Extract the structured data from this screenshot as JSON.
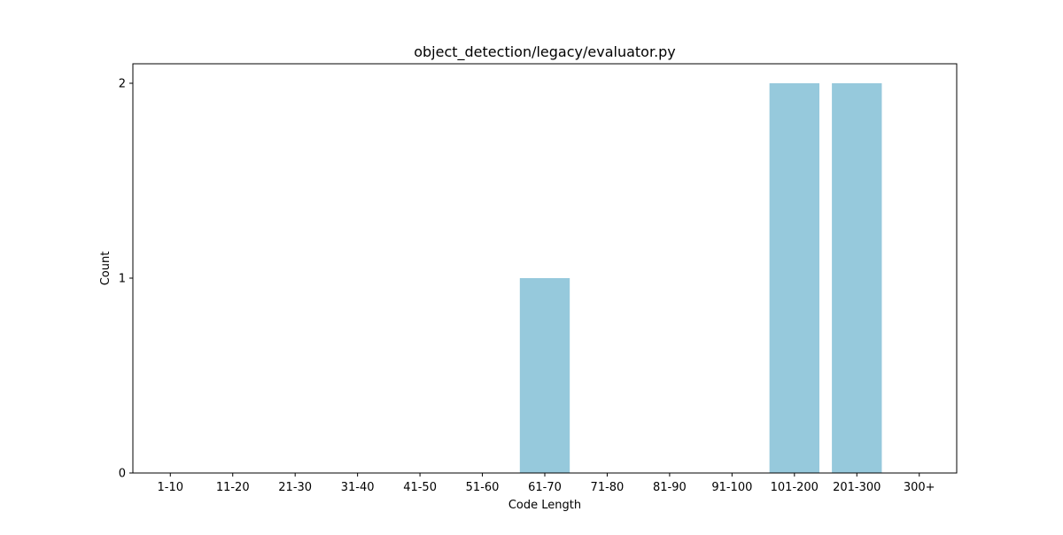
{
  "chart_data": {
    "type": "bar",
    "title": "object_detection/legacy/evaluator.py",
    "xlabel": "Code Length",
    "ylabel": "Count",
    "categories": [
      "1-10",
      "11-20",
      "21-30",
      "31-40",
      "41-50",
      "51-60",
      "61-70",
      "71-80",
      "81-90",
      "91-100",
      "101-200",
      "201-300",
      "300+"
    ],
    "values": [
      0,
      0,
      0,
      0,
      0,
      0,
      1,
      0,
      0,
      0,
      2,
      2,
      0
    ],
    "ylim": [
      0,
      2.1
    ],
    "yticks": [
      0,
      1,
      2
    ],
    "grid": false,
    "legend": "none",
    "bar_color": "#96c9dc"
  }
}
